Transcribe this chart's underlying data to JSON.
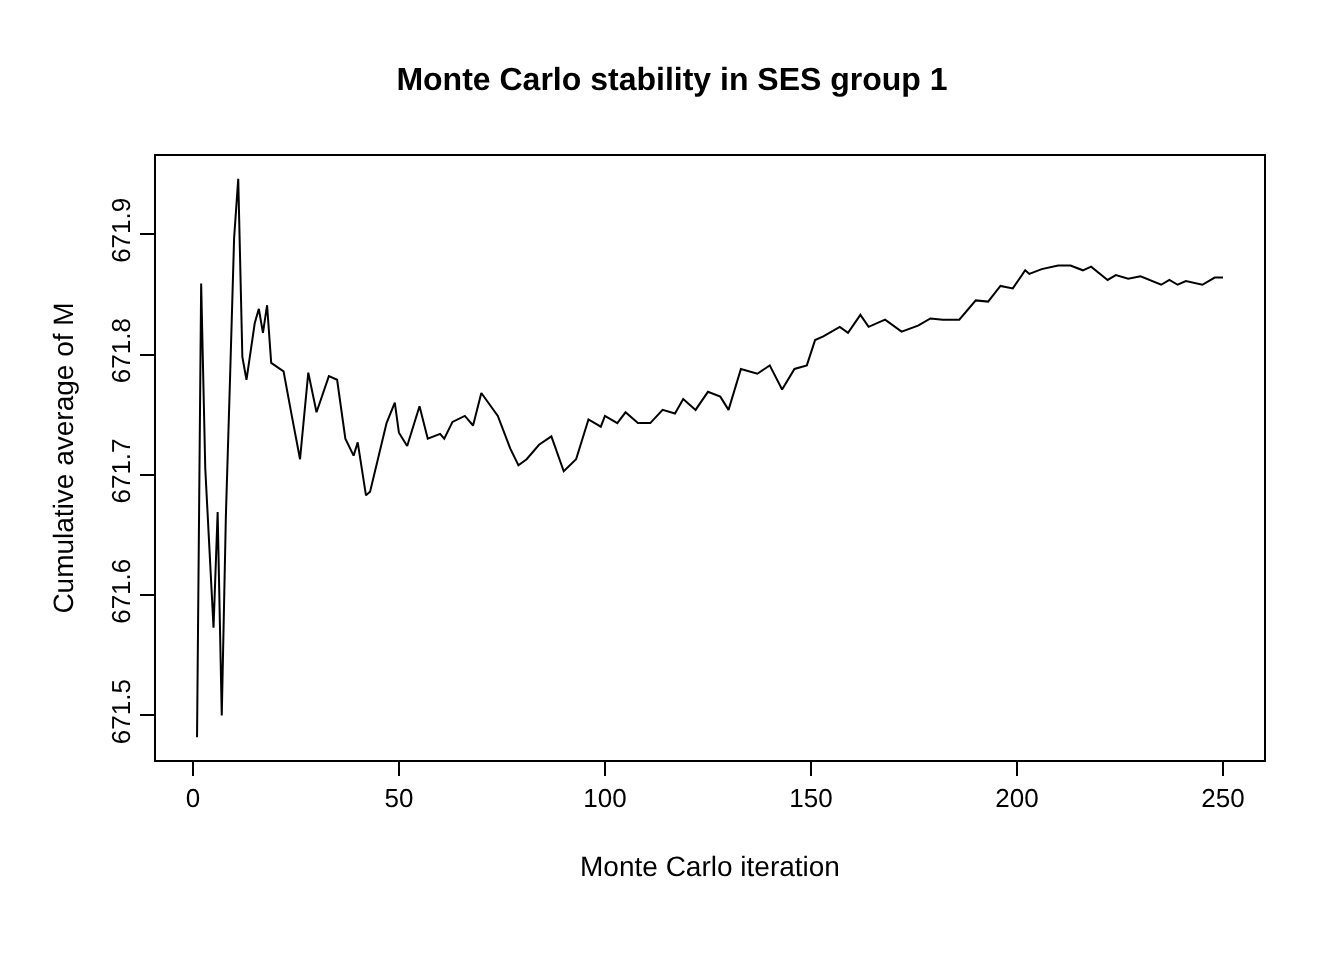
{
  "chart_data": {
    "type": "line",
    "title": "Monte Carlo stability in SES group 1",
    "xlabel": "Monte Carlo iteration",
    "ylabel": "Cumulative average of M",
    "xlim": [
      -8.96,
      259.96
    ],
    "xticks": [
      0,
      50,
      100,
      150,
      200,
      250
    ],
    "ylim": [
      671.463,
      671.965
    ],
    "yticks": [
      671.5,
      671.6,
      671.7,
      671.8,
      671.9
    ],
    "grid": false,
    "marker": "none",
    "line_style": "solid",
    "series": [
      {
        "color": "#000000",
        "x": [
          1,
          2,
          3,
          5,
          6,
          7,
          8,
          9,
          10,
          11,
          12,
          13,
          15,
          16,
          17,
          18,
          19,
          22,
          24,
          26,
          28,
          30,
          33,
          35,
          37,
          39,
          40,
          42,
          43,
          47,
          49,
          50,
          52,
          55,
          57,
          60,
          61,
          63,
          66,
          68,
          70,
          74,
          77,
          79,
          81,
          84,
          87,
          90,
          93,
          96,
          99,
          100,
          103,
          105,
          108,
          111,
          114,
          117,
          119,
          122,
          125,
          128,
          130,
          133,
          137,
          140,
          143,
          146,
          149,
          151,
          153,
          157,
          159,
          162,
          164,
          168,
          172,
          176,
          179,
          182,
          186,
          190,
          193,
          196,
          199,
          202,
          203,
          206,
          210,
          213,
          216,
          218,
          222,
          224,
          227,
          230,
          235,
          237,
          239,
          241,
          245,
          248,
          250
        ],
        "values": [
          671.482,
          671.859,
          671.705,
          671.573,
          671.669,
          671.5,
          671.666,
          671.779,
          671.897,
          671.946,
          671.798,
          671.779,
          671.826,
          671.838,
          671.818,
          671.841,
          671.793,
          671.786,
          671.749,
          671.713,
          671.785,
          671.752,
          671.782,
          671.779,
          671.73,
          671.716,
          671.727,
          671.683,
          671.686,
          671.743,
          671.76,
          671.735,
          671.724,
          671.757,
          671.73,
          671.734,
          671.73,
          671.744,
          671.749,
          671.741,
          671.768,
          671.749,
          671.722,
          671.708,
          671.713,
          671.725,
          671.732,
          671.703,
          671.713,
          671.746,
          671.74,
          671.749,
          671.743,
          671.752,
          671.743,
          671.743,
          671.754,
          671.751,
          671.763,
          671.754,
          671.769,
          671.765,
          671.754,
          671.788,
          671.784,
          671.791,
          671.771,
          671.788,
          671.791,
          671.812,
          671.815,
          671.823,
          671.818,
          671.833,
          671.823,
          671.829,
          671.819,
          671.824,
          671.83,
          671.829,
          671.829,
          671.845,
          671.844,
          671.857,
          671.855,
          671.87,
          671.867,
          671.871,
          671.874,
          671.874,
          671.87,
          671.873,
          671.862,
          671.866,
          671.863,
          671.865,
          671.858,
          671.862,
          671.858,
          671.861,
          671.858,
          671.864,
          671.864
        ]
      }
    ]
  }
}
